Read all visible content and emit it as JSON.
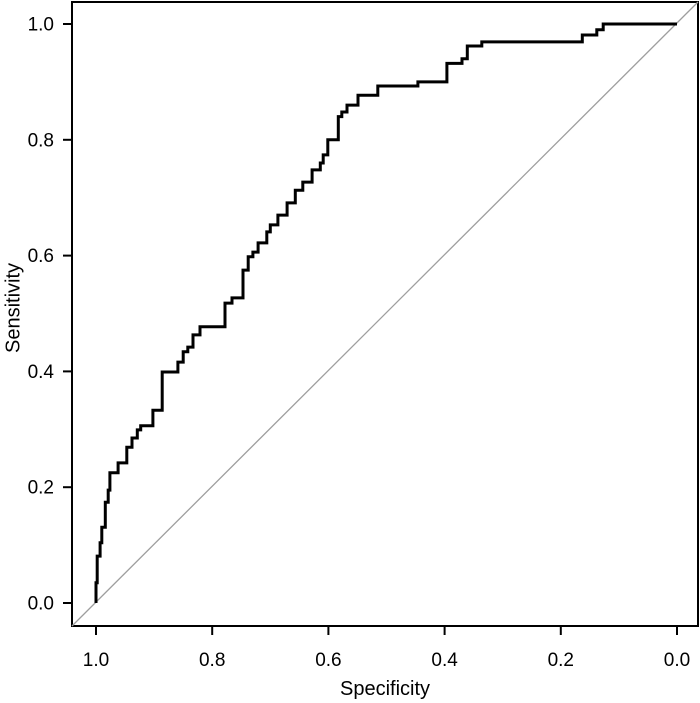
{
  "figure": {
    "background": "#ffffff",
    "axis_color": "#000000"
  },
  "chart_data": {
    "type": "line",
    "subtype": "roc-step-curve",
    "title": "",
    "xlabel": "Specificity",
    "ylabel": "Sensitivity",
    "x_axis_reversed": true,
    "xlim": [
      1.04,
      -0.04
    ],
    "ylim": [
      -0.04,
      1.04
    ],
    "grid": false,
    "legend": null,
    "x_ticks": [
      1.0,
      0.8,
      0.6,
      0.4,
      0.2,
      0.0
    ],
    "x_tick_labels": [
      "1.0",
      "0.8",
      "0.6",
      "0.4",
      "0.2",
      "0.0"
    ],
    "y_ticks": [
      0.0,
      0.2,
      0.4,
      0.6,
      0.8,
      1.0
    ],
    "y_tick_labels": [
      "0.0",
      "0.2",
      "0.4",
      "0.6",
      "0.8",
      "1.0"
    ],
    "series": [
      {
        "name": "ROC curve",
        "color": "#000000",
        "line_width": 3,
        "step_points": [
          [
            1.0,
            0.0
          ],
          [
            1.0,
            0.035
          ],
          [
            0.998,
            0.081
          ],
          [
            0.993,
            0.104
          ],
          [
            0.99,
            0.131
          ],
          [
            0.984,
            0.174
          ],
          [
            0.979,
            0.195
          ],
          [
            0.976,
            0.225
          ],
          [
            0.962,
            0.242
          ],
          [
            0.947,
            0.269
          ],
          [
            0.938,
            0.285
          ],
          [
            0.929,
            0.299
          ],
          [
            0.923,
            0.306
          ],
          [
            0.902,
            0.333
          ],
          [
            0.886,
            0.399
          ],
          [
            0.859,
            0.416
          ],
          [
            0.85,
            0.434
          ],
          [
            0.842,
            0.442
          ],
          [
            0.833,
            0.463
          ],
          [
            0.821,
            0.477
          ],
          [
            0.778,
            0.518
          ],
          [
            0.766,
            0.527
          ],
          [
            0.747,
            0.575
          ],
          [
            0.738,
            0.598
          ],
          [
            0.73,
            0.606
          ],
          [
            0.721,
            0.622
          ],
          [
            0.706,
            0.641
          ],
          [
            0.7,
            0.653
          ],
          [
            0.687,
            0.67
          ],
          [
            0.671,
            0.691
          ],
          [
            0.657,
            0.713
          ],
          [
            0.644,
            0.727
          ],
          [
            0.628,
            0.748
          ],
          [
            0.614,
            0.76
          ],
          [
            0.609,
            0.774
          ],
          [
            0.601,
            0.8
          ],
          [
            0.583,
            0.84
          ],
          [
            0.577,
            0.848
          ],
          [
            0.568,
            0.86
          ],
          [
            0.549,
            0.877
          ],
          [
            0.515,
            0.893
          ],
          [
            0.446,
            0.9
          ],
          [
            0.396,
            0.932
          ],
          [
            0.37,
            0.94
          ],
          [
            0.361,
            0.962
          ],
          [
            0.336,
            0.969
          ],
          [
            0.163,
            0.981
          ],
          [
            0.138,
            0.99
          ],
          [
            0.127,
            1.0
          ],
          [
            0.0,
            1.0
          ]
        ]
      },
      {
        "name": "chance diagonal",
        "color": "#9e9e9e",
        "line_width": 1.3,
        "points": [
          [
            1.04,
            -0.04
          ],
          [
            -0.04,
            1.04
          ]
        ]
      }
    ]
  }
}
